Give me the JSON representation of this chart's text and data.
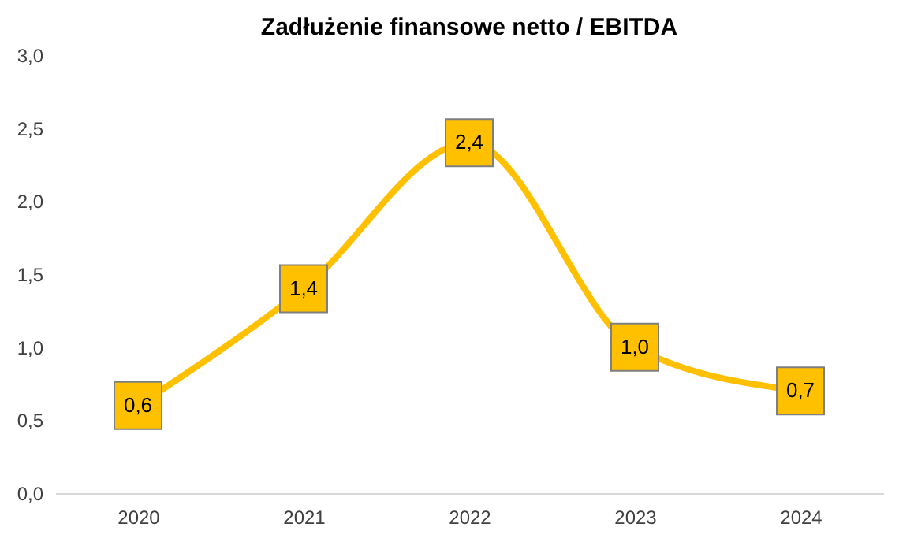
{
  "chart_data": {
    "type": "line",
    "title": "Zadłużenie finansowe netto / EBITDA",
    "categories": [
      "2020",
      "2021",
      "2022",
      "2023",
      "2024"
    ],
    "series": [
      {
        "color": "#ffc000",
        "values": [
          0.6,
          1.4,
          2.4,
          1.0,
          0.7
        ],
        "value_labels": [
          "0,6",
          "1,4",
          "2,4",
          "1,0",
          "0,7"
        ]
      }
    ],
    "ylim": [
      0,
      3
    ],
    "yticks": [
      {
        "value": 0,
        "label": "0,0"
      },
      {
        "value": 0.5,
        "label": "0,5"
      },
      {
        "value": 1,
        "label": "1,0"
      },
      {
        "value": 1.5,
        "label": "1,5"
      },
      {
        "value": 2,
        "label": "2,0"
      },
      {
        "value": 2.5,
        "label": "2,5"
      },
      {
        "value": 3,
        "label": "3,0"
      }
    ],
    "grid": false,
    "marker": "square",
    "line_style": "solid"
  }
}
